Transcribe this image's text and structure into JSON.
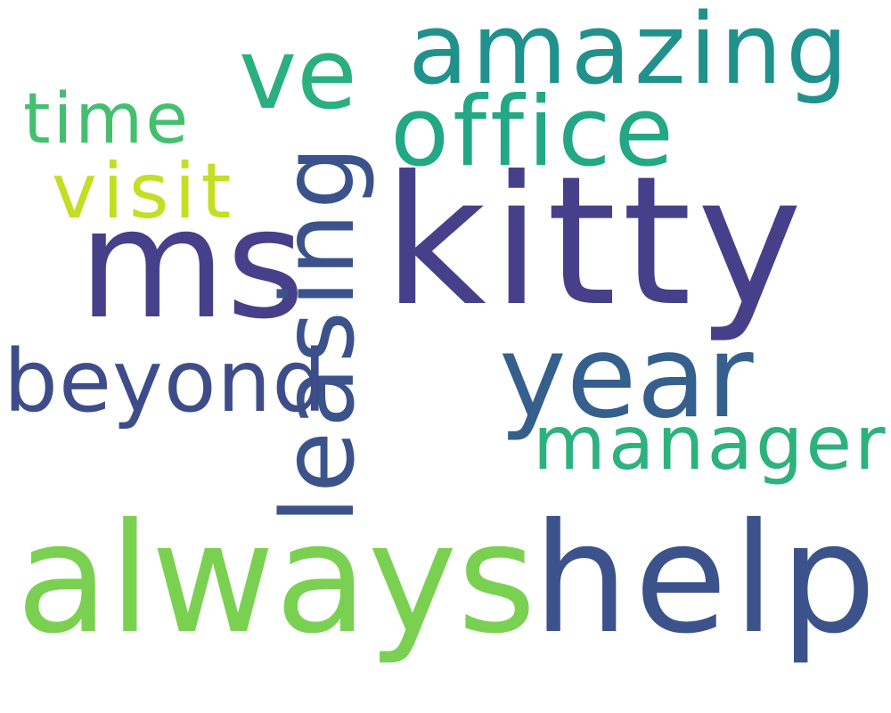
{
  "words": [
    {
      "id": "kitty",
      "text": "kitty",
      "color": "#46408a"
    },
    {
      "id": "ms",
      "text": "ms",
      "color": "#46408a"
    },
    {
      "id": "always",
      "text": "always",
      "color": "#7ad151"
    },
    {
      "id": "help",
      "text": "help",
      "color": "#3b528b"
    },
    {
      "id": "year",
      "text": "year",
      "color": "#355f8d"
    },
    {
      "id": "amazing",
      "text": "amazing",
      "color": "#21918c"
    },
    {
      "id": "office",
      "text": "office",
      "color": "#22a884"
    },
    {
      "id": "ve",
      "text": "ve",
      "color": "#2ab07f"
    },
    {
      "id": "leasing",
      "text": "leasing",
      "color": "#3b528b"
    },
    {
      "id": "beyond",
      "text": "beyond",
      "color": "#3e4c8a"
    },
    {
      "id": "manager",
      "text": "manager",
      "color": "#2db27d"
    },
    {
      "id": "visit",
      "text": "visit",
      "color": "#c2df23"
    },
    {
      "id": "time",
      "text": "time",
      "color": "#44bf70"
    }
  ]
}
